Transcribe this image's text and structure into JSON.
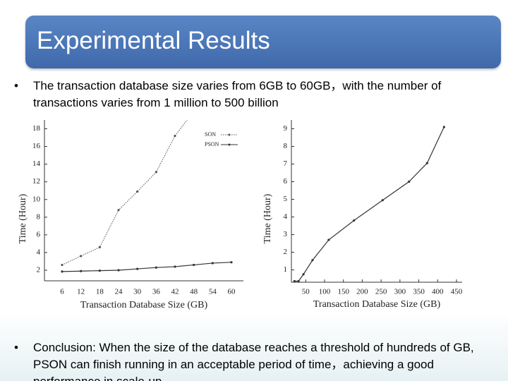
{
  "slide": {
    "title": "Experimental Results",
    "bullets": [
      "The transaction database size varies from 6GB to 60GB，with the number of transactions varies from 1 million to 500 billion",
      "Conclusion: When the size of the database reaches a threshold of hundreds of GB, PSON can finish running in an acceptable period of time，achieving a good performance in scale-up"
    ]
  },
  "chart_data": [
    {
      "type": "line",
      "xlabel": "Transaction Database Size (GB)",
      "ylabel": "Time (Hour)",
      "categories": [
        "6",
        "12",
        "18",
        "24",
        "30",
        "36",
        "42",
        "48",
        "54",
        "60"
      ],
      "series": [
        {
          "name": "SON",
          "color": "#555555",
          "linestyle": "dotted",
          "values": [
            2.6,
            3.6,
            4.6,
            8.8,
            10.9,
            13.1,
            17.2,
            20,
            null,
            null
          ]
        },
        {
          "name": "PSON",
          "color": "#333333",
          "linestyle": "solid",
          "values": [
            1.85,
            1.9,
            1.95,
            2.0,
            2.15,
            2.3,
            2.4,
            2.6,
            2.8,
            2.9
          ]
        }
      ],
      "ylim": [
        0.8,
        19
      ],
      "yticks": [
        2,
        4,
        6,
        8,
        10,
        12,
        14,
        16,
        18
      ],
      "legend": "upper right",
      "grid": false
    },
    {
      "type": "line",
      "xlabel": "Transaction Database Size (GB)",
      "ylabel": "Time (Hour)",
      "x": [
        20,
        31,
        44,
        68,
        111,
        178,
        254,
        324,
        372,
        417
      ],
      "values": [
        0.36,
        0.36,
        0.75,
        1.55,
        2.7,
        3.8,
        4.95,
        6.0,
        7.05,
        9.1
      ],
      "color": "#333333",
      "xlim": [
        12,
        465
      ],
      "xticks": [
        50,
        100,
        150,
        200,
        250,
        300,
        350,
        400,
        450
      ],
      "ylim": [
        0.3,
        9.5
      ],
      "yticks": [
        1,
        2,
        3,
        4,
        5,
        6,
        7,
        8,
        9
      ],
      "grid": false
    }
  ]
}
